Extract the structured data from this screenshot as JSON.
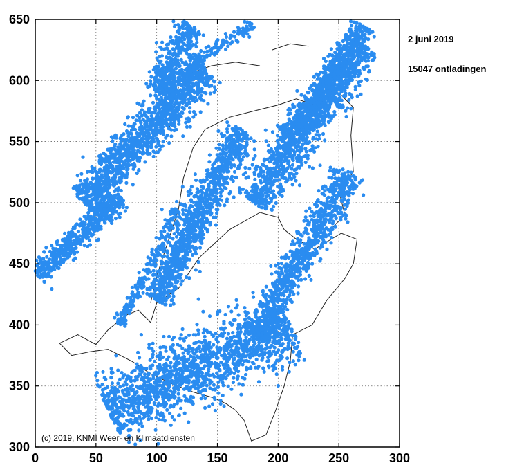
{
  "chart_data": {
    "type": "scatter",
    "title": "",
    "xlabel": "",
    "ylabel": "",
    "xlim": [
      0,
      300
    ],
    "ylim": [
      300,
      650
    ],
    "xticks": [
      0,
      50,
      100,
      150,
      200,
      250,
      300
    ],
    "yticks": [
      300,
      350,
      400,
      450,
      500,
      550,
      600,
      650
    ],
    "grid": true,
    "grid_style": "dotted",
    "series": [
      {
        "color": "#2a8cf0",
        "bands": [
          {
            "from": [
              2,
              440
            ],
            "to": [
              70,
              505
            ],
            "width": 10,
            "density": 0.6
          },
          {
            "from": [
              40,
              500
            ],
            "to": [
              140,
              610
            ],
            "width": 18,
            "density": 0.9
          },
          {
            "from": [
              100,
              590
            ],
            "to": [
              130,
              645
            ],
            "width": 14,
            "density": 0.6
          },
          {
            "from": [
              100,
              420
            ],
            "to": [
              170,
              560
            ],
            "width": 14,
            "density": 0.7
          },
          {
            "from": [
              60,
              330
            ],
            "to": [
              210,
              400
            ],
            "width": 30,
            "density": 1.0
          },
          {
            "from": [
              180,
              390
            ],
            "to": [
              260,
              525
            ],
            "width": 14,
            "density": 0.6
          },
          {
            "from": [
              180,
              500
            ],
            "to": [
              270,
              630
            ],
            "width": 18,
            "density": 0.8
          },
          {
            "from": [
              210,
              550
            ],
            "to": [
              270,
              645
            ],
            "width": 10,
            "density": 0.5
          },
          {
            "from": [
              70,
              400
            ],
            "to": [
              120,
              500
            ],
            "width": 6,
            "density": 0.2
          },
          {
            "from": [
              130,
              615
            ],
            "to": [
              180,
              645
            ],
            "width": 6,
            "density": 0.2
          }
        ]
      }
    ]
  },
  "annotations": {
    "date": "2 juni 2019",
    "count": "15047 ontladingen",
    "copyright": "(c) 2019, KNMI Weer- en Klimaatdiensten"
  }
}
